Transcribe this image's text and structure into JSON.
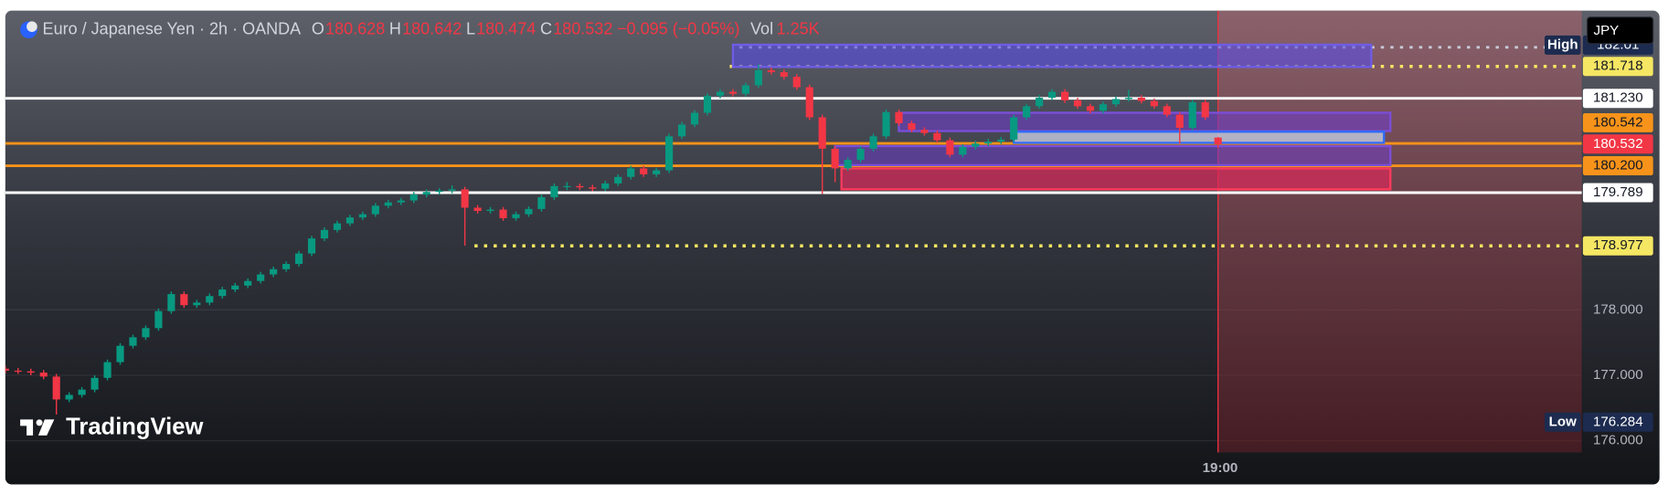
{
  "chart_data": {
    "type": "candlestick",
    "title": "Euro / Japanese Yen · 2h · OANDA",
    "legend": {
      "o_label": "O",
      "open": 180.628,
      "h_label": "H",
      "high": 180.642,
      "l_label": "L",
      "low": 180.474,
      "c_label": "C",
      "close": 180.532,
      "change": "−0.095 (−0.05%)",
      "vol_label": "Vol",
      "volume": "1.25K"
    },
    "currency": "JPY",
    "watermark": "TradingView",
    "up_color": "#089981",
    "down_color": "#f23645",
    "categories": [
      null,
      null,
      null,
      null,
      null,
      null,
      null,
      null,
      null,
      null,
      null,
      null,
      null,
      null,
      null,
      null,
      null,
      null,
      null,
      null,
      null,
      null,
      null,
      null,
      null,
      null,
      null,
      null,
      null,
      null,
      null,
      null,
      null,
      null,
      null,
      null,
      null,
      null,
      null,
      null,
      null,
      null,
      null,
      null,
      null,
      null,
      null,
      null,
      null,
      null,
      null,
      null,
      null,
      null,
      null,
      null,
      null,
      null,
      null,
      null,
      null,
      null,
      null,
      null,
      null,
      null,
      null,
      null,
      null,
      null,
      null,
      null,
      null,
      null,
      null,
      null,
      null,
      null,
      null,
      null,
      null,
      null,
      null,
      null,
      null,
      null,
      null,
      null,
      null,
      null,
      null,
      null,
      null,
      null,
      null,
      "19:00"
    ],
    "open": [
      177.1,
      177.07,
      177.06,
      177.04,
      176.98,
      176.63,
      176.7,
      176.78,
      176.96,
      177.2,
      177.45,
      177.58,
      177.72,
      177.98,
      178.24,
      178.07,
      178.11,
      178.21,
      178.31,
      178.37,
      178.44,
      178.54,
      178.62,
      178.7,
      178.86,
      179.09,
      179.22,
      179.32,
      179.41,
      179.46,
      179.59,
      179.64,
      179.67,
      179.76,
      179.8,
      179.82,
      179.84,
      179.56,
      179.51,
      179.53,
      179.4,
      179.46,
      179.54,
      179.72,
      179.89,
      179.89,
      179.87,
      179.85,
      179.93,
      180.03,
      180.16,
      180.07,
      180.13,
      180.65,
      180.83,
      181.01,
      181.27,
      181.33,
      181.3,
      181.43,
      181.66,
      181.63,
      181.56,
      181.4,
      180.94,
      180.46,
      180.16,
      180.29,
      180.46,
      180.65,
      181.02,
      180.85,
      180.75,
      180.7,
      180.59,
      180.37,
      180.49,
      180.54,
      180.57,
      180.6,
      180.94,
      181.11,
      181.24,
      181.33,
      181.2,
      181.11,
      181.04,
      181.14,
      181.22,
      181.24,
      181.19,
      181.11,
      180.98,
      180.78,
      181.17,
      180.63
    ],
    "high": [
      177.14,
      177.11,
      177.1,
      177.08,
      177.02,
      176.74,
      176.82,
      177.0,
      177.24,
      177.49,
      177.62,
      177.76,
      178.02,
      178.28,
      178.28,
      178.15,
      178.25,
      178.35,
      178.41,
      178.48,
      178.58,
      178.66,
      178.74,
      178.9,
      179.13,
      179.26,
      179.36,
      179.45,
      179.5,
      179.63,
      179.68,
      179.71,
      179.8,
      179.84,
      179.86,
      179.9,
      179.88,
      179.6,
      179.57,
      179.57,
      179.5,
      179.58,
      179.76,
      179.93,
      179.95,
      179.93,
      179.91,
      179.97,
      180.07,
      180.2,
      180.2,
      180.17,
      180.69,
      180.87,
      181.05,
      181.31,
      181.37,
      181.37,
      181.47,
      181.75,
      181.7,
      181.67,
      181.6,
      181.44,
      180.98,
      180.5,
      180.33,
      180.5,
      180.69,
      181.06,
      181.06,
      180.89,
      180.79,
      180.74,
      180.63,
      180.53,
      180.58,
      180.61,
      180.64,
      180.98,
      181.15,
      181.28,
      181.37,
      181.37,
      181.24,
      181.15,
      181.18,
      181.26,
      181.36,
      181.28,
      181.23,
      181.15,
      181.02,
      181.21,
      181.21,
      180.64
    ],
    "low": [
      177.03,
      177.02,
      177.0,
      176.94,
      176.4,
      176.59,
      176.66,
      176.74,
      176.92,
      177.16,
      177.41,
      177.54,
      177.68,
      177.94,
      178.03,
      178.03,
      178.07,
      178.17,
      178.27,
      178.33,
      178.4,
      178.5,
      178.58,
      178.66,
      178.82,
      179.05,
      179.18,
      179.28,
      179.37,
      179.42,
      179.55,
      179.6,
      179.63,
      179.72,
      179.76,
      179.78,
      178.98,
      179.47,
      179.47,
      179.36,
      179.36,
      179.42,
      179.5,
      179.68,
      179.83,
      179.83,
      179.81,
      179.81,
      179.89,
      179.99,
      180.03,
      180.03,
      180.09,
      180.61,
      180.79,
      180.97,
      181.23,
      181.26,
      181.26,
      181.39,
      181.59,
      181.52,
      181.36,
      180.9,
      179.77,
      179.95,
      180.12,
      180.25,
      180.42,
      180.61,
      180.81,
      180.71,
      180.66,
      180.55,
      180.33,
      180.33,
      180.45,
      180.5,
      180.53,
      180.56,
      180.9,
      181.07,
      181.2,
      181.16,
      181.07,
      181.0,
      181.0,
      181.1,
      181.18,
      181.15,
      181.07,
      180.94,
      180.54,
      180.74,
      180.9,
      180.47
    ],
    "close": [
      177.07,
      177.06,
      177.04,
      176.98,
      176.63,
      176.7,
      176.78,
      176.96,
      177.2,
      177.45,
      177.58,
      177.72,
      177.98,
      178.24,
      178.07,
      178.11,
      178.21,
      178.31,
      178.37,
      178.44,
      178.54,
      178.62,
      178.7,
      178.86,
      179.09,
      179.22,
      179.32,
      179.41,
      179.46,
      179.59,
      179.64,
      179.67,
      179.76,
      179.8,
      179.82,
      179.84,
      179.56,
      179.51,
      179.53,
      179.4,
      179.46,
      179.54,
      179.72,
      179.89,
      179.89,
      179.87,
      179.85,
      179.93,
      180.03,
      180.16,
      180.07,
      180.13,
      180.65,
      180.83,
      181.01,
      181.27,
      181.33,
      181.3,
      181.43,
      181.66,
      181.63,
      181.56,
      181.4,
      180.94,
      180.46,
      180.16,
      180.29,
      180.46,
      180.65,
      181.02,
      180.85,
      180.75,
      180.7,
      180.59,
      180.37,
      180.49,
      180.54,
      180.57,
      180.6,
      180.94,
      181.11,
      181.24,
      181.33,
      181.2,
      181.11,
      181.04,
      181.14,
      181.22,
      181.24,
      181.19,
      181.11,
      180.98,
      180.78,
      181.17,
      180.94,
      180.53
    ],
    "ylim": [
      175.82,
      182.57
    ],
    "yticks": [
      {
        "value": 176,
        "label": "176.000"
      },
      {
        "value": 177,
        "label": "177.000"
      },
      {
        "value": 178,
        "label": "178.000"
      }
    ],
    "grid": true,
    "levels": [
      {
        "value": 181.718,
        "color": "#f5e663",
        "style": "dotted",
        "start": 56.75,
        "label_bg": "#f5e663",
        "label_fg": "#131722"
      },
      {
        "value": 181.23,
        "label": "181.230",
        "color": "#ffffff",
        "style": "solid",
        "label_bg": "#ffffff",
        "label_fg": "#131722"
      },
      {
        "value": 180.542,
        "color": "#f7931a",
        "style": "solid",
        "label_bg": "#f7931a",
        "label_fg": "#131722"
      },
      {
        "value": 180.2,
        "label": "180.200",
        "color": "#f7931a",
        "style": "solid",
        "label_bg": "#f7931a",
        "label_fg": "#131722"
      },
      {
        "value": 179.789,
        "color": "#ffffff",
        "style": "solid",
        "label_bg": "#ffffff",
        "label_fg": "#131722"
      },
      {
        "value": 178.977,
        "color": "#f5e663",
        "style": "dotted",
        "start": 36.75,
        "label_bg": "#f5e663",
        "label_fg": "#131722"
      }
    ],
    "extremes": [
      {
        "label": "High",
        "value": 182.01,
        "color": "#c8cad6",
        "start": 57.5
      },
      {
        "label": "Low",
        "value": 176.284
      }
    ],
    "zones": [
      {
        "low": 181.71,
        "high": 182.05,
        "start": 57,
        "end": 107,
        "fill": "rgba(88,76,230,0.6)",
        "stroke": "#6e5ce6"
      },
      {
        "low": 180.73,
        "high": 181.01,
        "start": 70,
        "end": 108.5,
        "fill": "rgba(110,60,200,0.6)",
        "stroke": "#7a4fd8"
      },
      {
        "low": 180.55,
        "high": 180.72,
        "start": 79,
        "end": 108,
        "fill": "rgba(190,195,215,0.85)",
        "stroke": "#2f6bff"
      },
      {
        "low": 180.21,
        "high": 180.5,
        "start": 65,
        "end": 108.5,
        "fill": "rgba(110,60,200,0.55)",
        "stroke": "#7a4fd8"
      },
      {
        "low": 179.84,
        "high": 180.16,
        "start": 65.5,
        "end": 108.5,
        "fill": "rgba(220,40,90,0.7)",
        "stroke": "#ff3b5c"
      }
    ]
  }
}
